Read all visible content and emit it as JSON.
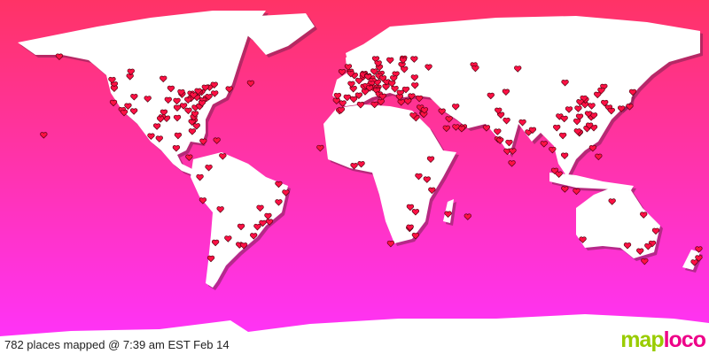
{
  "status_text": "782 places mapped @ 7:39 am EST Feb 14",
  "logo": {
    "part1": "map",
    "part2": "loco"
  },
  "colors": {
    "background_top": "#ff3366",
    "background_bottom": "#ff33ff",
    "land": "#ffffff",
    "marker": "#ff1144",
    "logo_green": "#99cc00",
    "logo_pink": "#ee0088"
  },
  "marker_icon": "heart-icon",
  "markers": [
    [
      47,
      -122
    ],
    [
      45,
      -122
    ],
    [
      37.7,
      -122.4
    ],
    [
      34,
      -118
    ],
    [
      32.7,
      -117
    ],
    [
      33.4,
      -112
    ],
    [
      39.7,
      -105
    ],
    [
      40.7,
      -111.9
    ],
    [
      36,
      -115
    ],
    [
      29.7,
      -95.4
    ],
    [
      32.8,
      -96.8
    ],
    [
      30.3,
      -97.7
    ],
    [
      29.4,
      -98.5
    ],
    [
      41.9,
      -87.6
    ],
    [
      42.3,
      -83
    ],
    [
      39.9,
      -83
    ],
    [
      39.1,
      -84.5
    ],
    [
      38.6,
      -90.2
    ],
    [
      39.1,
      -94.6
    ],
    [
      44.9,
      -93.2
    ],
    [
      43,
      -88
    ],
    [
      40.4,
      -80
    ],
    [
      39.9,
      -75.2
    ],
    [
      40.7,
      -74
    ],
    [
      42.4,
      -71
    ],
    [
      38.9,
      -77
    ],
    [
      35.2,
      -80.8
    ],
    [
      33.7,
      -84.4
    ],
    [
      36.1,
      -86.8
    ],
    [
      35.1,
      -90
    ],
    [
      30,
      -90
    ],
    [
      28.5,
      -81.4
    ],
    [
      25.8,
      -80.2
    ],
    [
      27.9,
      -82.5
    ],
    [
      30.3,
      -81.6
    ],
    [
      32,
      -81
    ],
    [
      35.8,
      -78.6
    ],
    [
      37.5,
      -77.4
    ],
    [
      41.5,
      -81.7
    ],
    [
      43.1,
      -77.6
    ],
    [
      42.9,
      -78.9
    ],
    [
      43.6,
      -79.4
    ],
    [
      45.5,
      -73.6
    ],
    [
      45.4,
      -75.7
    ],
    [
      49.3,
      -123.1
    ],
    [
      51,
      -114
    ],
    [
      53.5,
      -113.5
    ],
    [
      49.9,
      -97.1
    ],
    [
      46.8,
      -71.2
    ],
    [
      44.6,
      -63.6
    ],
    [
      47.6,
      -52.7
    ],
    [
      61.2,
      -149.9
    ],
    [
      21.3,
      -157.8
    ],
    [
      19.4,
      -99.1
    ],
    [
      20.7,
      -103.3
    ],
    [
      25.7,
      -100.3
    ],
    [
      21,
      -89.6
    ],
    [
      14.6,
      -90.5
    ],
    [
      9.9,
      -84
    ],
    [
      18.5,
      -69.9
    ],
    [
      18,
      -76.8
    ],
    [
      23.1,
      -82.4
    ],
    [
      10.5,
      -66.9
    ],
    [
      4.7,
      -74
    ],
    [
      -0.2,
      -78.5
    ],
    [
      -12,
      -77
    ],
    [
      -16.5,
      -68.1
    ],
    [
      -33.4,
      -70.6
    ],
    [
      -34.6,
      -58.4
    ],
    [
      -31.4,
      -64.2
    ],
    [
      -23.5,
      -46.6
    ],
    [
      -22.9,
      -43.2
    ],
    [
      -19.9,
      -43.9
    ],
    [
      -15.8,
      -47.9
    ],
    [
      -25.4,
      -49.3
    ],
    [
      -30,
      -51.2
    ],
    [
      -12.9,
      -38.5
    ],
    [
      -8,
      -34.9
    ],
    [
      -3.7,
      -38.5
    ],
    [
      -34.9,
      -56.2
    ],
    [
      -25.3,
      -57.6
    ],
    [
      -41.5,
      -72.9
    ],
    [
      51.5,
      -0.1
    ],
    [
      53.5,
      -2.2
    ],
    [
      52.5,
      -1.9
    ],
    [
      55.9,
      -3.2
    ],
    [
      53.3,
      -6.3
    ],
    [
      48.9,
      2.3
    ],
    [
      45.8,
      4.8
    ],
    [
      43.3,
      5.4
    ],
    [
      44.8,
      -0.6
    ],
    [
      47.2,
      -1.6
    ],
    [
      50.8,
      4.4
    ],
    [
      52.4,
      4.9
    ],
    [
      51.9,
      4.5
    ],
    [
      52.5,
      13.4
    ],
    [
      53.6,
      10
    ],
    [
      50.1,
      8.7
    ],
    [
      48.1,
      11.6
    ],
    [
      48.8,
      9.2
    ],
    [
      51.2,
      6.8
    ],
    [
      50.9,
      6.9
    ],
    [
      51.3,
      12.4
    ],
    [
      47.4,
      8.5
    ],
    [
      46.2,
      6.1
    ],
    [
      48.2,
      16.4
    ],
    [
      50.1,
      14.4
    ],
    [
      52.2,
      21
    ],
    [
      50.1,
      19.9
    ],
    [
      47.5,
      19
    ],
    [
      45.5,
      9.2
    ],
    [
      45.1,
      7.7
    ],
    [
      45.4,
      11.9
    ],
    [
      44.5,
      11.3
    ],
    [
      43.8,
      11.3
    ],
    [
      41.9,
      12.5
    ],
    [
      40.9,
      14.3
    ],
    [
      38.1,
      13.4
    ],
    [
      40.4,
      -3.7
    ],
    [
      41.4,
      2.2
    ],
    [
      39.5,
      -0.4
    ],
    [
      37.4,
      -6
    ],
    [
      38.7,
      -9.1
    ],
    [
      41.2,
      -8.6
    ],
    [
      55.7,
      12.6
    ],
    [
      59.3,
      18.1
    ],
    [
      59.9,
      10.8
    ],
    [
      60.2,
      24.9
    ],
    [
      57.7,
      12
    ],
    [
      56.9,
      24.1
    ],
    [
      54.7,
      25.3
    ],
    [
      59.4,
      24.7
    ],
    [
      55.8,
      37.6
    ],
    [
      59.9,
      30.3
    ],
    [
      50.5,
      30.5
    ],
    [
      46.5,
      30.7
    ],
    [
      44.4,
      26.1
    ],
    [
      42.7,
      23.3
    ],
    [
      44.8,
      20.5
    ],
    [
      45.8,
      16
    ],
    [
      37.98,
      23.7
    ],
    [
      40.6,
      22.9
    ],
    [
      41,
      29
    ],
    [
      39.9,
      32.9
    ],
    [
      38.4,
      27.1
    ],
    [
      35.2,
      33.4
    ],
    [
      32.1,
      34.8
    ],
    [
      31.8,
      35.2
    ],
    [
      33.9,
      35.5
    ],
    [
      30,
      31.2
    ],
    [
      31.2,
      29.9
    ],
    [
      36.8,
      10.2
    ],
    [
      33.6,
      -7.6
    ],
    [
      34,
      -6.8
    ],
    [
      36.7,
      3.1
    ],
    [
      24.7,
      46.7
    ],
    [
      25.3,
      55.3
    ],
    [
      24.5,
      54.4
    ],
    [
      25.3,
      51.5
    ],
    [
      29.4,
      48
    ],
    [
      35.7,
      51.4
    ],
    [
      33.3,
      44.4
    ],
    [
      41.3,
      69.2
    ],
    [
      43.2,
      76.9
    ],
    [
      55,
      82.9
    ],
    [
      56.8,
      60.6
    ],
    [
      55.2,
      61.4
    ],
    [
      24.9,
      67
    ],
    [
      31.5,
      74.3
    ],
    [
      33.7,
      73
    ],
    [
      28.6,
      77.2
    ],
    [
      19.1,
      72.9
    ],
    [
      12.97,
      77.6
    ],
    [
      13.1,
      80.3
    ],
    [
      17.4,
      78.5
    ],
    [
      22.6,
      88.4
    ],
    [
      18.5,
      73.9
    ],
    [
      23,
      72.6
    ],
    [
      6.9,
      79.9
    ],
    [
      27.7,
      85.3
    ],
    [
      23.8,
      90.4
    ],
    [
      13.8,
      100.5
    ],
    [
      16.8,
      96.2
    ],
    [
      21,
      105.8
    ],
    [
      10.8,
      106.7
    ],
    [
      3.1,
      101.7
    ],
    [
      1.35,
      103.8
    ],
    [
      -6.2,
      106.8
    ],
    [
      -7.3,
      112.7
    ],
    [
      14.6,
      121
    ],
    [
      10.3,
      123.9
    ],
    [
      22.3,
      114.2
    ],
    [
      22.5,
      114.1
    ],
    [
      23.1,
      113.3
    ],
    [
      25,
      121.5
    ],
    [
      24.5,
      118.1
    ],
    [
      26.1,
      119.3
    ],
    [
      30.3,
      120.2
    ],
    [
      31.2,
      121.5
    ],
    [
      32,
      118.8
    ],
    [
      30.6,
      114.3
    ],
    [
      30.7,
      104.1
    ],
    [
      29.6,
      106.5
    ],
    [
      34.3,
      108.9
    ],
    [
      34.7,
      113.6
    ],
    [
      36.1,
      120.4
    ],
    [
      36.7,
      117
    ],
    [
      39.1,
      117.2
    ],
    [
      39.9,
      116.4
    ],
    [
      41.8,
      123.4
    ],
    [
      45.8,
      126.6
    ],
    [
      43.9,
      125.3
    ],
    [
      38,
      114.5
    ],
    [
      28.2,
      113
    ],
    [
      25,
      102.7
    ],
    [
      37.6,
      127
    ],
    [
      35.2,
      129.1
    ],
    [
      35.7,
      139.7
    ],
    [
      34.7,
      135.5
    ],
    [
      43.1,
      141.3
    ],
    [
      33.6,
      130.4
    ],
    [
      47.9,
      106.9
    ],
    [
      6.5,
      3.4
    ],
    [
      5.6,
      -0.2
    ],
    [
      14.7,
      -17.4
    ],
    [
      9,
      38.7
    ],
    [
      -1.3,
      36.8
    ],
    [
      -6.8,
      39.3
    ],
    [
      0.3,
      32.6
    ],
    [
      -15.4,
      28.3
    ],
    [
      -17.8,
      31
    ],
    [
      -26.2,
      28
    ],
    [
      -25.7,
      28.2
    ],
    [
      -29.9,
      31
    ],
    [
      -33.9,
      18.4
    ],
    [
      -18.9,
      47.5
    ],
    [
      -20.2,
      57.5
    ],
    [
      -33.9,
      151.2
    ],
    [
      -37.8,
      145
    ],
    [
      -27.5,
      153
    ],
    [
      -31.9,
      115.9
    ],
    [
      -34.9,
      138.6
    ],
    [
      -35.3,
      149.1
    ],
    [
      -42.9,
      147.3
    ],
    [
      -36.8,
      174.8
    ],
    [
      -41.3,
      174.8
    ],
    [
      -43.5,
      172.6
    ],
    [
      -12.5,
      130.8
    ],
    [
      -19.3,
      146.8
    ]
  ]
}
